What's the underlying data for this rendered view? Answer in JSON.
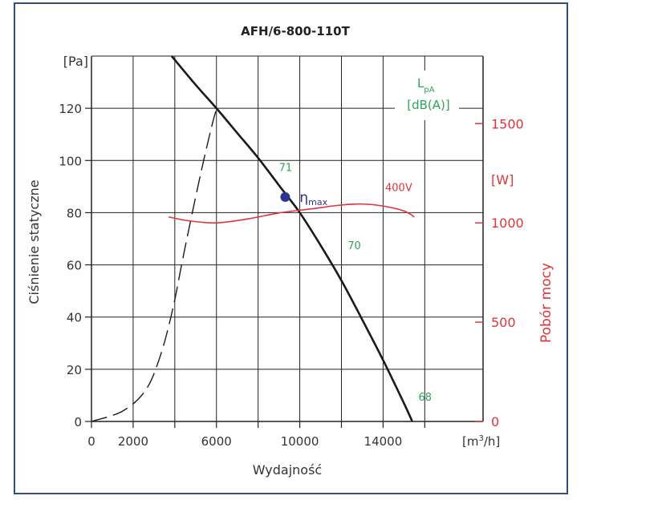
{
  "chart_data": {
    "type": "line",
    "title": "AFH/6-800-110T",
    "xlabel": "Wydajność",
    "xunit": "[m³/h]",
    "ylabel": "Ciśnienie statyczne",
    "yunit": "[Pa]",
    "y2label": "Pobór mocy",
    "y2unit": "[W]",
    "xlim": [
      0,
      18800
    ],
    "ylim": [
      0,
      140
    ],
    "y2lim": [
      0,
      1840
    ],
    "x_ticks": [
      0,
      2000,
      6000,
      10000,
      14000
    ],
    "x_tick_labels": [
      "0",
      "2000",
      "6000",
      "10000",
      "14000"
    ],
    "x_grid": [
      2000,
      4000,
      6000,
      8000,
      10000,
      12000,
      14000,
      16000
    ],
    "y_ticks": [
      0,
      20,
      40,
      60,
      80,
      100,
      120
    ],
    "y2_ticks": [
      0,
      500,
      1000,
      1500
    ],
    "grid": true,
    "legend_box": {
      "line1": "L",
      "sub": "pA",
      "line2": "[dB(A)]"
    },
    "series": [
      {
        "name": "",
        "color": "#1a1a1a",
        "style": "solid",
        "axis": "y",
        "x": [
          3850,
          5000,
          6000,
          7000,
          8000,
          9000,
          10000,
          11000,
          12000,
          13000,
          14000,
          15000,
          15400
        ],
        "y": [
          140,
          129,
          120,
          110.5,
          101,
          90.5,
          80,
          67.5,
          54,
          39,
          23.5,
          7,
          0
        ]
      },
      {
        "name": "",
        "color": "#1a1a1a",
        "style": "dashed",
        "axis": "y",
        "x": [
          0,
          1500,
          2600,
          3300,
          3900,
          4400,
          5000,
          5500,
          5900,
          6050
        ],
        "y": [
          0,
          4,
          12,
          25,
          43,
          63,
          86,
          104,
          117,
          120
        ]
      },
      {
        "name": "400V",
        "color": "#e0343c",
        "style": "solid",
        "axis": "y2",
        "x": [
          3700,
          4700,
          6000,
          7500,
          9000,
          10500,
          12000,
          13000,
          14000,
          15000,
          15500
        ],
        "y": [
          1030,
          1010,
          1000,
          1020,
          1050,
          1070,
          1090,
          1095,
          1085,
          1060,
          1030
        ]
      }
    ],
    "eta_max": {
      "label": "η",
      "sub": "max",
      "x": 9300,
      "y": 86,
      "color": "#2b3590"
    },
    "annotations": [
      {
        "text": "71",
        "x": 9000,
        "y": 96
      },
      {
        "text": "70",
        "x": 12300,
        "y": 66
      },
      {
        "text": "68",
        "x": 15700,
        "y": 8
      },
      {
        "text": "400V",
        "x": 14100,
        "y2": 1160
      }
    ]
  }
}
